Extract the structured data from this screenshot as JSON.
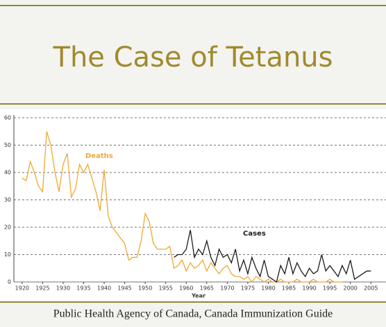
{
  "header": {
    "title": "The Case of Tetanus"
  },
  "chart_data": {
    "type": "line",
    "xlabel": "Year",
    "x": [
      1920,
      1921,
      1922,
      1923,
      1924,
      1925,
      1926,
      1927,
      1928,
      1929,
      1930,
      1931,
      1932,
      1933,
      1934,
      1935,
      1936,
      1937,
      1938,
      1939,
      1940,
      1941,
      1942,
      1943,
      1944,
      1945,
      1946,
      1947,
      1948,
      1949,
      1950,
      1951,
      1952,
      1953,
      1954,
      1955,
      1956,
      1957,
      1958,
      1959,
      1960,
      1961,
      1962,
      1963,
      1964,
      1965,
      1966,
      1967,
      1968,
      1969,
      1970,
      1971,
      1972,
      1973,
      1974,
      1975,
      1976,
      1977,
      1978,
      1979,
      1980,
      1981,
      1982,
      1983,
      1984,
      1985,
      1986,
      1987,
      1988,
      1989,
      1990,
      1991,
      1992,
      1993,
      1994,
      1995,
      1996,
      1997,
      1998,
      1999,
      2000,
      2001,
      2002,
      2003,
      2004,
      2005
    ],
    "series": [
      {
        "name": "Deaths",
        "color": "#f0a830",
        "values": [
          38,
          37,
          44,
          40,
          35,
          33,
          55,
          50,
          40,
          33,
          43,
          47,
          31,
          34,
          43,
          40,
          43,
          38,
          33,
          26,
          41,
          24,
          20,
          18,
          16,
          14,
          8,
          9,
          9,
          15,
          25,
          22,
          14,
          12,
          12,
          12,
          13,
          5,
          6,
          8,
          4,
          7,
          5,
          6,
          8,
          4,
          7,
          5,
          3,
          5,
          6,
          3,
          2,
          2,
          1,
          2,
          0,
          2,
          1,
          0,
          1,
          0,
          0,
          1,
          0,
          0,
          0,
          1,
          0,
          0,
          0,
          1,
          0,
          0,
          0,
          1,
          0,
          0,
          0,
          null,
          null,
          null,
          null,
          null,
          null,
          null
        ]
      },
      {
        "name": "Cases",
        "color": "#1a1a1a",
        "values": [
          null,
          null,
          null,
          null,
          null,
          null,
          null,
          null,
          null,
          null,
          null,
          null,
          null,
          null,
          null,
          null,
          null,
          null,
          null,
          null,
          null,
          null,
          null,
          null,
          null,
          null,
          null,
          null,
          null,
          null,
          null,
          null,
          null,
          null,
          null,
          null,
          null,
          9,
          10,
          10,
          12,
          19,
          9,
          12,
          10,
          15,
          9,
          6,
          12,
          9,
          10,
          7,
          12,
          4,
          8,
          3,
          9,
          5,
          2,
          8,
          2,
          1,
          0,
          6,
          3,
          9,
          3,
          7,
          4,
          2,
          5,
          3,
          4,
          10,
          4,
          6,
          4,
          2,
          6,
          3,
          8,
          1,
          2,
          3,
          4,
          4
        ]
      }
    ],
    "xlim": [
      1918,
      2008
    ],
    "xticks": [
      1920,
      1925,
      1930,
      1935,
      1940,
      1945,
      1950,
      1955,
      1960,
      1965,
      1970,
      1975,
      1980,
      1985,
      1990,
      1995,
      2000,
      2005
    ],
    "ylim": [
      0,
      60
    ],
    "yticks": [
      0,
      10,
      20,
      30,
      40,
      50,
      60
    ],
    "grid": true
  },
  "footer": {
    "source": "Public Health Agency of Canada, Canada Immunization Guide"
  }
}
